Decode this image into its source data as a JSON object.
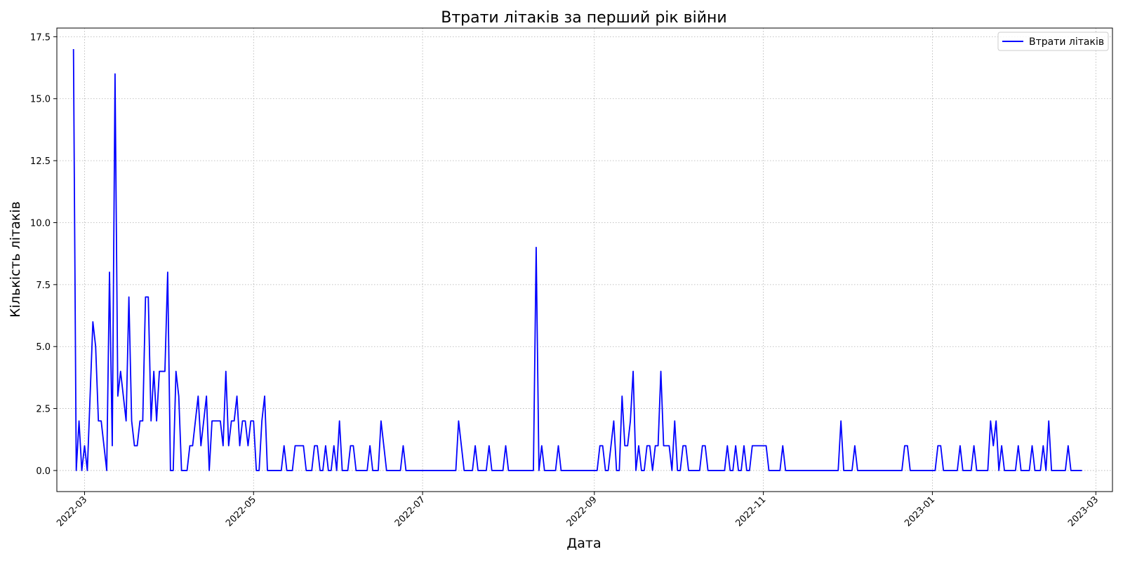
{
  "chart_data": {
    "type": "line",
    "title": "Втрати літаків за перший рік війни",
    "xlabel": "Дата",
    "ylabel": "Кількість літаків",
    "ylim": [
      -0.85,
      17.85
    ],
    "xlim": [
      "2022-02-19",
      "2023-03-07"
    ],
    "grid": true,
    "legend_position": "top-right",
    "y_ticks": [
      "0.0",
      "2.5",
      "5.0",
      "7.5",
      "10.0",
      "12.5",
      "15.0",
      "17.5"
    ],
    "x_ticks": [
      "2022-03",
      "2022-05",
      "2022-07",
      "2022-09",
      "2022-11",
      "2023-01",
      "2023-03"
    ],
    "series": [
      {
        "name": "Втрати літаків",
        "color": "#0000ff",
        "points": [
          [
            "2022-02-25",
            17
          ],
          [
            "2022-02-26",
            0
          ],
          [
            "2022-02-27",
            2
          ],
          [
            "2022-02-28",
            0
          ],
          [
            "2022-03-01",
            1
          ],
          [
            "2022-03-02",
            0
          ],
          [
            "2022-03-03",
            3
          ],
          [
            "2022-03-04",
            6
          ],
          [
            "2022-03-05",
            5
          ],
          [
            "2022-03-06",
            2
          ],
          [
            "2022-03-07",
            2
          ],
          [
            "2022-03-08",
            1
          ],
          [
            "2022-03-09",
            0
          ],
          [
            "2022-03-10",
            8
          ],
          [
            "2022-03-11",
            1
          ],
          [
            "2022-03-12",
            16
          ],
          [
            "2022-03-13",
            3
          ],
          [
            "2022-03-14",
            4
          ],
          [
            "2022-03-15",
            3
          ],
          [
            "2022-03-16",
            2
          ],
          [
            "2022-03-17",
            7
          ],
          [
            "2022-03-18",
            2
          ],
          [
            "2022-03-19",
            1
          ],
          [
            "2022-03-20",
            1
          ],
          [
            "2022-03-21",
            2
          ],
          [
            "2022-03-22",
            2
          ],
          [
            "2022-03-23",
            7
          ],
          [
            "2022-03-24",
            7
          ],
          [
            "2022-03-25",
            2
          ],
          [
            "2022-03-26",
            4
          ],
          [
            "2022-03-27",
            2
          ],
          [
            "2022-03-28",
            4
          ],
          [
            "2022-03-29",
            4
          ],
          [
            "2022-03-30",
            4
          ],
          [
            "2022-03-31",
            8
          ],
          [
            "2022-04-01",
            0
          ],
          [
            "2022-04-02",
            0
          ],
          [
            "2022-04-03",
            4
          ],
          [
            "2022-04-04",
            3
          ],
          [
            "2022-04-05",
            0
          ],
          [
            "2022-04-06",
            0
          ],
          [
            "2022-04-07",
            0
          ],
          [
            "2022-04-08",
            1
          ],
          [
            "2022-04-09",
            1
          ],
          [
            "2022-04-10",
            2
          ],
          [
            "2022-04-11",
            3
          ],
          [
            "2022-04-12",
            1
          ],
          [
            "2022-04-13",
            2
          ],
          [
            "2022-04-14",
            3
          ],
          [
            "2022-04-15",
            0
          ],
          [
            "2022-04-16",
            2
          ],
          [
            "2022-04-17",
            2
          ],
          [
            "2022-04-18",
            2
          ],
          [
            "2022-04-19",
            2
          ],
          [
            "2022-04-20",
            1
          ],
          [
            "2022-04-21",
            4
          ],
          [
            "2022-04-22",
            1
          ],
          [
            "2022-04-23",
            2
          ],
          [
            "2022-04-24",
            2
          ],
          [
            "2022-04-25",
            3
          ],
          [
            "2022-04-26",
            1
          ],
          [
            "2022-04-27",
            2
          ],
          [
            "2022-04-28",
            2
          ],
          [
            "2022-04-29",
            1
          ],
          [
            "2022-04-30",
            2
          ],
          [
            "2022-05-01",
            2
          ],
          [
            "2022-05-02",
            0
          ],
          [
            "2022-05-03",
            0
          ],
          [
            "2022-05-04",
            2
          ],
          [
            "2022-05-05",
            3
          ],
          [
            "2022-05-06",
            0
          ],
          [
            "2022-05-07",
            0
          ],
          [
            "2022-05-08",
            0
          ],
          [
            "2022-05-09",
            0
          ],
          [
            "2022-05-10",
            0
          ],
          [
            "2022-05-11",
            0
          ],
          [
            "2022-05-12",
            1
          ],
          [
            "2022-05-13",
            0
          ],
          [
            "2022-05-14",
            0
          ],
          [
            "2022-05-15",
            0
          ],
          [
            "2022-05-16",
            1
          ],
          [
            "2022-05-17",
            1
          ],
          [
            "2022-05-18",
            1
          ],
          [
            "2022-05-19",
            1
          ],
          [
            "2022-05-20",
            0
          ],
          [
            "2022-05-21",
            0
          ],
          [
            "2022-05-22",
            0
          ],
          [
            "2022-05-23",
            1
          ],
          [
            "2022-05-24",
            1
          ],
          [
            "2022-05-25",
            0
          ],
          [
            "2022-05-26",
            0
          ],
          [
            "2022-05-27",
            1
          ],
          [
            "2022-05-28",
            0
          ],
          [
            "2022-05-29",
            0
          ],
          [
            "2022-05-30",
            1
          ],
          [
            "2022-05-31",
            0
          ],
          [
            "2022-06-01",
            2
          ],
          [
            "2022-06-02",
            0
          ],
          [
            "2022-06-03",
            0
          ],
          [
            "2022-06-04",
            0
          ],
          [
            "2022-06-05",
            1
          ],
          [
            "2022-06-06",
            1
          ],
          [
            "2022-06-07",
            0
          ],
          [
            "2022-06-08",
            0
          ],
          [
            "2022-06-09",
            0
          ],
          [
            "2022-06-10",
            0
          ],
          [
            "2022-06-11",
            0
          ],
          [
            "2022-06-12",
            1
          ],
          [
            "2022-06-13",
            0
          ],
          [
            "2022-06-14",
            0
          ],
          [
            "2022-06-15",
            0
          ],
          [
            "2022-06-16",
            2
          ],
          [
            "2022-06-17",
            1
          ],
          [
            "2022-06-18",
            0
          ],
          [
            "2022-06-19",
            0
          ],
          [
            "2022-06-20",
            0
          ],
          [
            "2022-06-21",
            0
          ],
          [
            "2022-06-22",
            0
          ],
          [
            "2022-06-23",
            0
          ],
          [
            "2022-06-24",
            1
          ],
          [
            "2022-06-25",
            0
          ],
          [
            "2022-06-26",
            0
          ],
          [
            "2022-07-13",
            0
          ],
          [
            "2022-07-14",
            2
          ],
          [
            "2022-07-15",
            1
          ],
          [
            "2022-07-16",
            0
          ],
          [
            "2022-07-17",
            0
          ],
          [
            "2022-07-18",
            0
          ],
          [
            "2022-07-19",
            0
          ],
          [
            "2022-07-20",
            1
          ],
          [
            "2022-07-21",
            0
          ],
          [
            "2022-07-22",
            0
          ],
          [
            "2022-07-23",
            0
          ],
          [
            "2022-07-24",
            0
          ],
          [
            "2022-07-25",
            1
          ],
          [
            "2022-07-26",
            0
          ],
          [
            "2022-07-27",
            0
          ],
          [
            "2022-07-28",
            0
          ],
          [
            "2022-07-29",
            0
          ],
          [
            "2022-07-30",
            0
          ],
          [
            "2022-07-31",
            1
          ],
          [
            "2022-08-01",
            0
          ],
          [
            "2022-08-02",
            0
          ],
          [
            "2022-08-10",
            0
          ],
          [
            "2022-08-11",
            9
          ],
          [
            "2022-08-12",
            0
          ],
          [
            "2022-08-13",
            1
          ],
          [
            "2022-08-14",
            0
          ],
          [
            "2022-08-15",
            0
          ],
          [
            "2022-08-16",
            0
          ],
          [
            "2022-08-17",
            0
          ],
          [
            "2022-08-18",
            0
          ],
          [
            "2022-08-19",
            1
          ],
          [
            "2022-08-20",
            0
          ],
          [
            "2022-08-21",
            0
          ],
          [
            "2022-09-02",
            0
          ],
          [
            "2022-09-03",
            1
          ],
          [
            "2022-09-04",
            1
          ],
          [
            "2022-09-05",
            0
          ],
          [
            "2022-09-06",
            0
          ],
          [
            "2022-09-07",
            1
          ],
          [
            "2022-09-08",
            2
          ],
          [
            "2022-09-09",
            0
          ],
          [
            "2022-09-10",
            0
          ],
          [
            "2022-09-11",
            3
          ],
          [
            "2022-09-12",
            1
          ],
          [
            "2022-09-13",
            1
          ],
          [
            "2022-09-14",
            2
          ],
          [
            "2022-09-15",
            4
          ],
          [
            "2022-09-16",
            0
          ],
          [
            "2022-09-17",
            1
          ],
          [
            "2022-09-18",
            0
          ],
          [
            "2022-09-19",
            0
          ],
          [
            "2022-09-20",
            1
          ],
          [
            "2022-09-21",
            1
          ],
          [
            "2022-09-22",
            0
          ],
          [
            "2022-09-23",
            1
          ],
          [
            "2022-09-24",
            1
          ],
          [
            "2022-09-25",
            4
          ],
          [
            "2022-09-26",
            1
          ],
          [
            "2022-09-27",
            1
          ],
          [
            "2022-09-28",
            1
          ],
          [
            "2022-09-29",
            0
          ],
          [
            "2022-09-30",
            2
          ],
          [
            "2022-10-01",
            0
          ],
          [
            "2022-10-02",
            0
          ],
          [
            "2022-10-03",
            1
          ],
          [
            "2022-10-04",
            1
          ],
          [
            "2022-10-05",
            0
          ],
          [
            "2022-10-06",
            0
          ],
          [
            "2022-10-07",
            0
          ],
          [
            "2022-10-08",
            0
          ],
          [
            "2022-10-09",
            0
          ],
          [
            "2022-10-10",
            1
          ],
          [
            "2022-10-11",
            1
          ],
          [
            "2022-10-12",
            0
          ],
          [
            "2022-10-13",
            0
          ],
          [
            "2022-10-14",
            0
          ],
          [
            "2022-10-15",
            0
          ],
          [
            "2022-10-16",
            0
          ],
          [
            "2022-10-17",
            0
          ],
          [
            "2022-10-18",
            0
          ],
          [
            "2022-10-19",
            1
          ],
          [
            "2022-10-20",
            0
          ],
          [
            "2022-10-21",
            0
          ],
          [
            "2022-10-22",
            1
          ],
          [
            "2022-10-23",
            0
          ],
          [
            "2022-10-24",
            0
          ],
          [
            "2022-10-25",
            1
          ],
          [
            "2022-10-26",
            0
          ],
          [
            "2022-10-27",
            0
          ],
          [
            "2022-10-28",
            1
          ],
          [
            "2022-10-29",
            1
          ],
          [
            "2022-10-30",
            1
          ],
          [
            "2022-10-31",
            1
          ],
          [
            "2022-11-01",
            1
          ],
          [
            "2022-11-02",
            1
          ],
          [
            "2022-11-03",
            0
          ],
          [
            "2022-11-04",
            0
          ],
          [
            "2022-11-05",
            0
          ],
          [
            "2022-11-06",
            0
          ],
          [
            "2022-11-07",
            0
          ],
          [
            "2022-11-08",
            1
          ],
          [
            "2022-11-09",
            0
          ],
          [
            "2022-11-10",
            0
          ],
          [
            "2022-11-28",
            0
          ],
          [
            "2022-11-29",
            2
          ],
          [
            "2022-11-30",
            0
          ],
          [
            "2022-12-01",
            0
          ],
          [
            "2022-12-02",
            0
          ],
          [
            "2022-12-03",
            0
          ],
          [
            "2022-12-04",
            1
          ],
          [
            "2022-12-05",
            0
          ],
          [
            "2022-12-06",
            0
          ],
          [
            "2022-12-21",
            0
          ],
          [
            "2022-12-22",
            1
          ],
          [
            "2022-12-23",
            1
          ],
          [
            "2022-12-24",
            0
          ],
          [
            "2022-12-25",
            0
          ],
          [
            "2023-01-02",
            0
          ],
          [
            "2023-01-03",
            1
          ],
          [
            "2023-01-04",
            1
          ],
          [
            "2023-01-05",
            0
          ],
          [
            "2023-01-06",
            0
          ],
          [
            "2023-01-10",
            0
          ],
          [
            "2023-01-11",
            1
          ],
          [
            "2023-01-12",
            0
          ],
          [
            "2023-01-13",
            0
          ],
          [
            "2023-01-14",
            0
          ],
          [
            "2023-01-15",
            0
          ],
          [
            "2023-01-16",
            1
          ],
          [
            "2023-01-17",
            0
          ],
          [
            "2023-01-18",
            0
          ],
          [
            "2023-01-19",
            0
          ],
          [
            "2023-01-20",
            0
          ],
          [
            "2023-01-21",
            0
          ],
          [
            "2023-01-22",
            2
          ],
          [
            "2023-01-23",
            1
          ],
          [
            "2023-01-24",
            2
          ],
          [
            "2023-01-25",
            0
          ],
          [
            "2023-01-26",
            1
          ],
          [
            "2023-01-27",
            0
          ],
          [
            "2023-01-28",
            0
          ],
          [
            "2023-01-29",
            0
          ],
          [
            "2023-01-30",
            0
          ],
          [
            "2023-01-31",
            0
          ],
          [
            "2023-02-01",
            1
          ],
          [
            "2023-02-02",
            0
          ],
          [
            "2023-02-03",
            0
          ],
          [
            "2023-02-04",
            0
          ],
          [
            "2023-02-05",
            0
          ],
          [
            "2023-02-06",
            1
          ],
          [
            "2023-02-07",
            0
          ],
          [
            "2023-02-08",
            0
          ],
          [
            "2023-02-09",
            0
          ],
          [
            "2023-02-10",
            1
          ],
          [
            "2023-02-11",
            0
          ],
          [
            "2023-02-12",
            2
          ],
          [
            "2023-02-13",
            0
          ],
          [
            "2023-02-14",
            0
          ],
          [
            "2023-02-15",
            0
          ],
          [
            "2023-02-16",
            0
          ],
          [
            "2023-02-17",
            0
          ],
          [
            "2023-02-18",
            0
          ],
          [
            "2023-02-19",
            1
          ],
          [
            "2023-02-20",
            0
          ],
          [
            "2023-02-21",
            0
          ],
          [
            "2023-02-22",
            0
          ],
          [
            "2023-02-23",
            0
          ],
          [
            "2023-02-24",
            0
          ]
        ]
      }
    ]
  }
}
